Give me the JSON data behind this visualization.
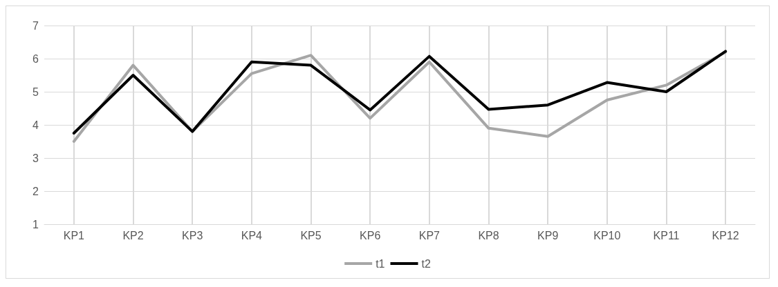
{
  "chart_data": {
    "type": "line",
    "categories": [
      "KP1",
      "KP2",
      "KP3",
      "KP4",
      "KP5",
      "KP6",
      "KP7",
      "KP8",
      "KP9",
      "KP10",
      "KP11",
      "KP12"
    ],
    "series": [
      {
        "name": "t1",
        "color": "#a6a6a6",
        "values": [
          3.5,
          5.8,
          3.8,
          5.55,
          6.1,
          4.2,
          5.9,
          3.9,
          3.65,
          4.75,
          5.2,
          6.2
        ]
      },
      {
        "name": "t2",
        "color": "#000000",
        "values": [
          3.75,
          5.5,
          3.8,
          5.9,
          5.8,
          4.45,
          6.07,
          4.47,
          4.6,
          5.28,
          5.0,
          6.22
        ]
      }
    ],
    "ylim": [
      1,
      7
    ],
    "yticks": [
      1,
      2,
      3,
      4,
      5,
      6,
      7
    ],
    "grid": true,
    "legend": "bottom",
    "marker": "none",
    "line_style": "solid"
  }
}
